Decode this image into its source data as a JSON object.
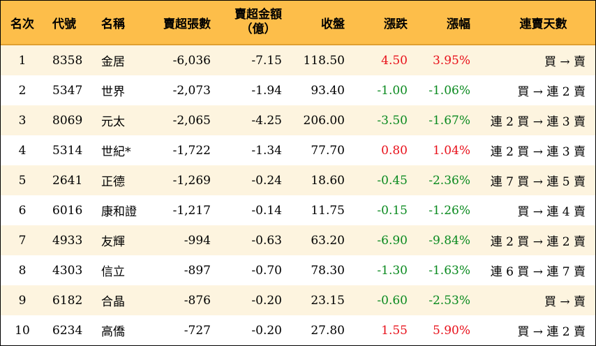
{
  "headers": {
    "rank": "名次",
    "code": "代號",
    "name": "名稱",
    "net_sell_lots": "賣超張數",
    "net_sell_amount_line1": "賣超金額",
    "net_sell_amount_line2": "（億）",
    "close": "收盤",
    "change": "漲跌",
    "pct": "漲幅",
    "streak": "連賣天數"
  },
  "colors": {
    "header_bg": "#fdbe4a",
    "odd_row_bg": "#fdf4df",
    "up": "#e8101a",
    "down": "#0a8a1f"
  },
  "rows": [
    {
      "rank": "1",
      "code": "8358",
      "name": "金居",
      "lots": "-6,036",
      "amount": "-7.15",
      "close": "118.50",
      "change": "4.50",
      "pct": "3.95%",
      "dir": "up",
      "streak": "買 → 賣"
    },
    {
      "rank": "2",
      "code": "5347",
      "name": "世界",
      "lots": "-2,073",
      "amount": "-1.94",
      "close": "93.40",
      "change": "-1.00",
      "pct": "-1.06%",
      "dir": "down",
      "streak": "買 → 連 2 賣"
    },
    {
      "rank": "3",
      "code": "8069",
      "name": "元太",
      "lots": "-2,065",
      "amount": "-4.25",
      "close": "206.00",
      "change": "-3.50",
      "pct": "-1.67%",
      "dir": "down",
      "streak": "連 2 買 → 連 3 賣"
    },
    {
      "rank": "4",
      "code": "5314",
      "name": "世紀*",
      "lots": "-1,722",
      "amount": "-1.34",
      "close": "77.70",
      "change": "0.80",
      "pct": "1.04%",
      "dir": "up",
      "streak": "連 2 買 → 連 3 賣"
    },
    {
      "rank": "5",
      "code": "2641",
      "name": "正德",
      "lots": "-1,269",
      "amount": "-0.24",
      "close": "18.60",
      "change": "-0.45",
      "pct": "-2.36%",
      "dir": "down",
      "streak": "連 7 買 → 連 5 賣"
    },
    {
      "rank": "6",
      "code": "6016",
      "name": "康和證",
      "lots": "-1,217",
      "amount": "-0.14",
      "close": "11.75",
      "change": "-0.15",
      "pct": "-1.26%",
      "dir": "down",
      "streak": "買 → 連 4 賣"
    },
    {
      "rank": "7",
      "code": "4933",
      "name": "友輝",
      "lots": "-994",
      "amount": "-0.63",
      "close": "63.20",
      "change": "-6.90",
      "pct": "-9.84%",
      "dir": "down",
      "streak": "連 2 買 → 連 2 賣"
    },
    {
      "rank": "8",
      "code": "4303",
      "name": "信立",
      "lots": "-897",
      "amount": "-0.70",
      "close": "78.30",
      "change": "-1.30",
      "pct": "-1.63%",
      "dir": "down",
      "streak": "連 6 買 → 連 7 賣"
    },
    {
      "rank": "9",
      "code": "6182",
      "name": "合晶",
      "lots": "-876",
      "amount": "-0.20",
      "close": "23.15",
      "change": "-0.60",
      "pct": "-2.53%",
      "dir": "down",
      "streak": "買 → 賣"
    },
    {
      "rank": "10",
      "code": "6234",
      "name": "高僑",
      "lots": "-727",
      "amount": "-0.20",
      "close": "27.80",
      "change": "1.55",
      "pct": "5.90%",
      "dir": "up",
      "streak": "買 → 連 2 賣"
    }
  ]
}
